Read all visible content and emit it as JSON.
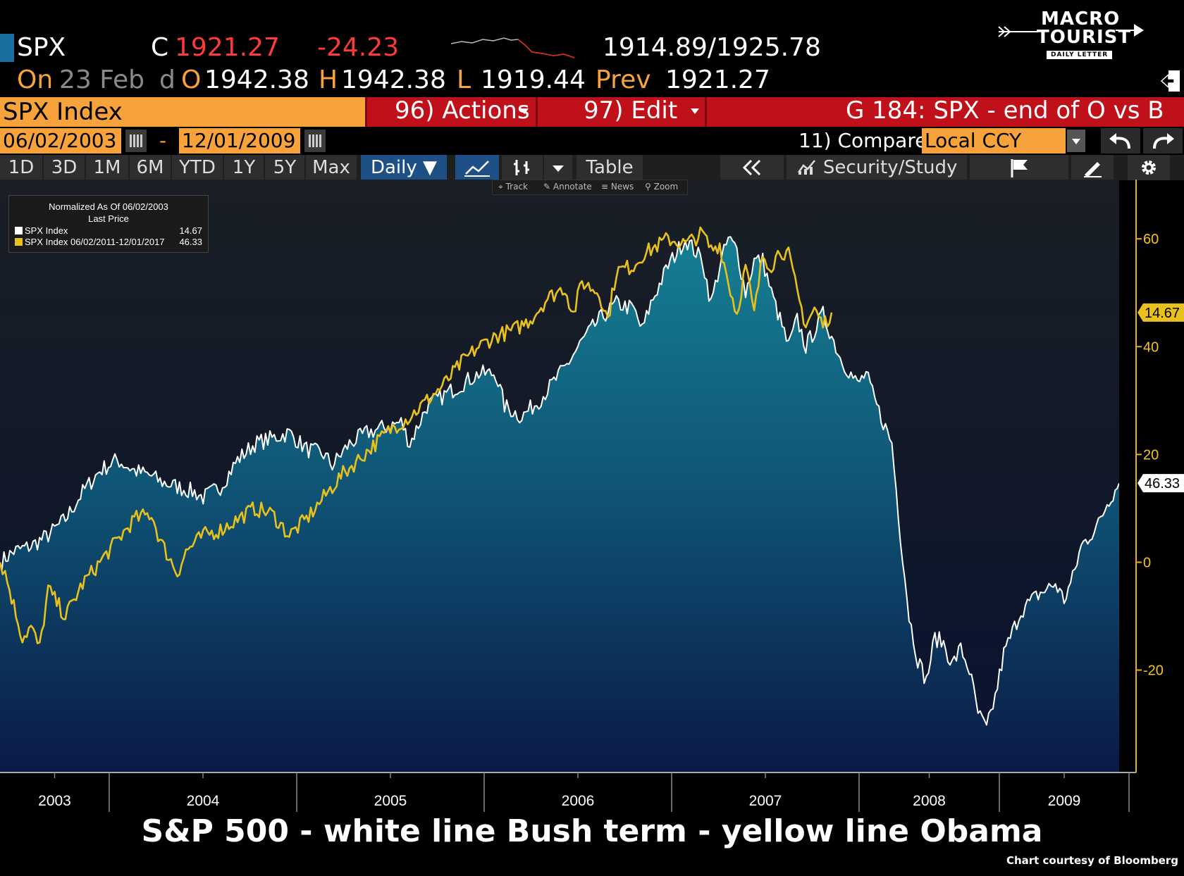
{
  "quote": {
    "ticker": "SPX",
    "last_prefix": "C",
    "last": "1921.27",
    "change": "-24.23",
    "bid_ask": "1914.89/1925.78",
    "on_label": "On",
    "date": "23 Feb",
    "d_label": "d",
    "open_label": "O",
    "open": "1942.38",
    "high_label": "H",
    "high": "1942.38",
    "low_label": "L",
    "low": "1919.44",
    "prev_label": "Prev",
    "prev": "1921.27"
  },
  "logo": {
    "line1": "MACRO",
    "line2": "TOURIST",
    "line3": "DAILY LETTER"
  },
  "toolbar": {
    "security": "SPX Index",
    "actions": "96) Actions",
    "edit": "97) Edit",
    "chart_title": "G 184: SPX - end of O vs B"
  },
  "dates": {
    "start": "06/02/2003",
    "dash": "-",
    "end": "12/01/2009",
    "compare": "11) Compare",
    "currency": "Local CCY"
  },
  "ranges": [
    "1D",
    "3D",
    "1M",
    "6M",
    "YTD",
    "1Y",
    "5Y",
    "Max"
  ],
  "period": "Daily ▼",
  "table_label": "Table",
  "security_study": "Security/Study",
  "mini_tools": [
    "Track",
    "Annotate",
    "News",
    "Zoom"
  ],
  "legend": {
    "header1": "Normalized As Of 06/02/2003",
    "header2": "Last Price",
    "s1_label": "SPX Index",
    "s1_value": "14.67",
    "s2_label": "SPX Index 06/02/2011-12/01/2017",
    "s2_value": "46.33"
  },
  "caption": "S&P 500 - white line Bush term - yellow line Obama",
  "credit": "Chart courtesy of Bloomberg",
  "colors": {
    "bush": "#ffffff",
    "obama": "#e8c11c",
    "orange": "#f7a23a",
    "red": "#c0111b",
    "axis_label": "#f5c518"
  },
  "chart_data": {
    "type": "line",
    "xlabel": "",
    "ylabel": "",
    "x_tick_labels": [
      "2003",
      "2004",
      "2005",
      "2006",
      "2007",
      "2008",
      "2009"
    ],
    "y_ticks": [
      -20,
      0,
      20,
      40,
      60
    ],
    "ylim": [
      -39,
      71
    ],
    "last_value_tags": [
      "46.33",
      "14.67"
    ],
    "series": [
      {
        "name": "SPX Index",
        "color": "#ffffff",
        "area_fill": true,
        "last": 14.67,
        "points": [
          [
            2003.42,
            0
          ],
          [
            2003.5,
            2
          ],
          [
            2003.6,
            3
          ],
          [
            2003.7,
            5
          ],
          [
            2003.8,
            8
          ],
          [
            2003.9,
            13
          ],
          [
            2004.0,
            17
          ],
          [
            2004.1,
            19
          ],
          [
            2004.2,
            17
          ],
          [
            2004.3,
            16
          ],
          [
            2004.35,
            15
          ],
          [
            2004.45,
            14
          ],
          [
            2004.55,
            13
          ],
          [
            2004.6,
            12
          ],
          [
            2004.7,
            14
          ],
          [
            2004.8,
            19
          ],
          [
            2004.9,
            22
          ],
          [
            2005.0,
            23
          ],
          [
            2005.1,
            24
          ],
          [
            2005.2,
            21
          ],
          [
            2005.3,
            20
          ],
          [
            2005.35,
            18
          ],
          [
            2005.45,
            22
          ],
          [
            2005.55,
            24
          ],
          [
            2005.65,
            25
          ],
          [
            2005.75,
            26
          ],
          [
            2005.8,
            22
          ],
          [
            2005.9,
            29
          ],
          [
            2006.0,
            31
          ],
          [
            2006.1,
            33
          ],
          [
            2006.2,
            35
          ],
          [
            2006.3,
            35
          ],
          [
            2006.35,
            29
          ],
          [
            2006.45,
            27
          ],
          [
            2006.55,
            30
          ],
          [
            2006.6,
            32
          ],
          [
            2006.7,
            36
          ],
          [
            2006.8,
            41
          ],
          [
            2006.9,
            45
          ],
          [
            2007.0,
            48
          ],
          [
            2007.1,
            47
          ],
          [
            2007.15,
            43
          ],
          [
            2007.2,
            48
          ],
          [
            2007.3,
            55
          ],
          [
            2007.4,
            60
          ],
          [
            2007.45,
            58
          ],
          [
            2007.5,
            56
          ],
          [
            2007.55,
            48
          ],
          [
            2007.6,
            55
          ],
          [
            2007.65,
            60
          ],
          [
            2007.7,
            58
          ],
          [
            2007.75,
            50
          ],
          [
            2007.8,
            56
          ],
          [
            2007.85,
            56
          ],
          [
            2007.9,
            50
          ],
          [
            2007.95,
            45
          ],
          [
            2008.0,
            40
          ],
          [
            2008.05,
            45
          ],
          [
            2008.1,
            40
          ],
          [
            2008.2,
            46
          ],
          [
            2008.3,
            38
          ],
          [
            2008.4,
            33
          ],
          [
            2008.45,
            35
          ],
          [
            2008.5,
            30
          ],
          [
            2008.55,
            26
          ],
          [
            2008.6,
            22
          ],
          [
            2008.65,
            5
          ],
          [
            2008.7,
            -10
          ],
          [
            2008.75,
            -18
          ],
          [
            2008.8,
            -22
          ],
          [
            2008.85,
            -14
          ],
          [
            2008.9,
            -15
          ],
          [
            2008.95,
            -19
          ],
          [
            2009.0,
            -16
          ],
          [
            2009.05,
            -20
          ],
          [
            2009.1,
            -28
          ],
          [
            2009.15,
            -31
          ],
          [
            2009.2,
            -25
          ],
          [
            2009.25,
            -17
          ],
          [
            2009.35,
            -9
          ],
          [
            2009.45,
            -6
          ],
          [
            2009.55,
            -4
          ],
          [
            2009.6,
            -7
          ],
          [
            2009.65,
            -3
          ],
          [
            2009.7,
            3
          ],
          [
            2009.8,
            7
          ],
          [
            2009.85,
            11
          ],
          [
            2009.92,
            14.67
          ]
        ]
      },
      {
        "name": "SPX Index 06/02/2011-12/01/2017",
        "color": "#e8c11c",
        "area_fill": false,
        "last": 46.33,
        "points": [
          [
            2003.42,
            0
          ],
          [
            2003.45,
            -2
          ],
          [
            2003.5,
            -8
          ],
          [
            2003.55,
            -14
          ],
          [
            2003.6,
            -12
          ],
          [
            2003.65,
            -16
          ],
          [
            2003.7,
            -5
          ],
          [
            2003.8,
            -10
          ],
          [
            2003.9,
            -4
          ],
          [
            2004.0,
            0
          ],
          [
            2004.1,
            4
          ],
          [
            2004.2,
            8
          ],
          [
            2004.3,
            9
          ],
          [
            2004.35,
            4
          ],
          [
            2004.4,
            1
          ],
          [
            2004.45,
            -2
          ],
          [
            2004.5,
            2
          ],
          [
            2004.6,
            5
          ],
          [
            2004.7,
            6
          ],
          [
            2004.8,
            8
          ],
          [
            2004.9,
            10
          ],
          [
            2005.0,
            9
          ],
          [
            2005.1,
            5
          ],
          [
            2005.2,
            8
          ],
          [
            2005.3,
            12
          ],
          [
            2005.4,
            16
          ],
          [
            2005.5,
            19
          ],
          [
            2005.6,
            22
          ],
          [
            2005.7,
            25
          ],
          [
            2005.8,
            27
          ],
          [
            2005.9,
            30
          ],
          [
            2006.0,
            33
          ],
          [
            2006.1,
            37
          ],
          [
            2006.2,
            40
          ],
          [
            2006.3,
            42
          ],
          [
            2006.4,
            43
          ],
          [
            2006.5,
            45
          ],
          [
            2006.6,
            49
          ],
          [
            2006.7,
            51
          ],
          [
            2006.75,
            46
          ],
          [
            2006.8,
            52
          ],
          [
            2006.9,
            50
          ],
          [
            2006.95,
            45
          ],
          [
            2007.0,
            54
          ],
          [
            2007.1,
            55
          ],
          [
            2007.15,
            57
          ],
          [
            2007.2,
            58
          ],
          [
            2007.3,
            60
          ],
          [
            2007.4,
            59
          ],
          [
            2007.45,
            60
          ],
          [
            2007.5,
            61
          ],
          [
            2007.55,
            58
          ],
          [
            2007.6,
            59
          ],
          [
            2007.65,
            52
          ],
          [
            2007.7,
            46
          ],
          [
            2007.75,
            55
          ],
          [
            2007.8,
            46
          ],
          [
            2007.85,
            57
          ],
          [
            2007.9,
            55
          ],
          [
            2007.95,
            58
          ],
          [
            2008.0,
            57
          ],
          [
            2008.05,
            50
          ],
          [
            2008.1,
            44
          ],
          [
            2008.15,
            47
          ],
          [
            2008.2,
            44
          ],
          [
            2008.25,
            46.33
          ]
        ]
      }
    ]
  }
}
